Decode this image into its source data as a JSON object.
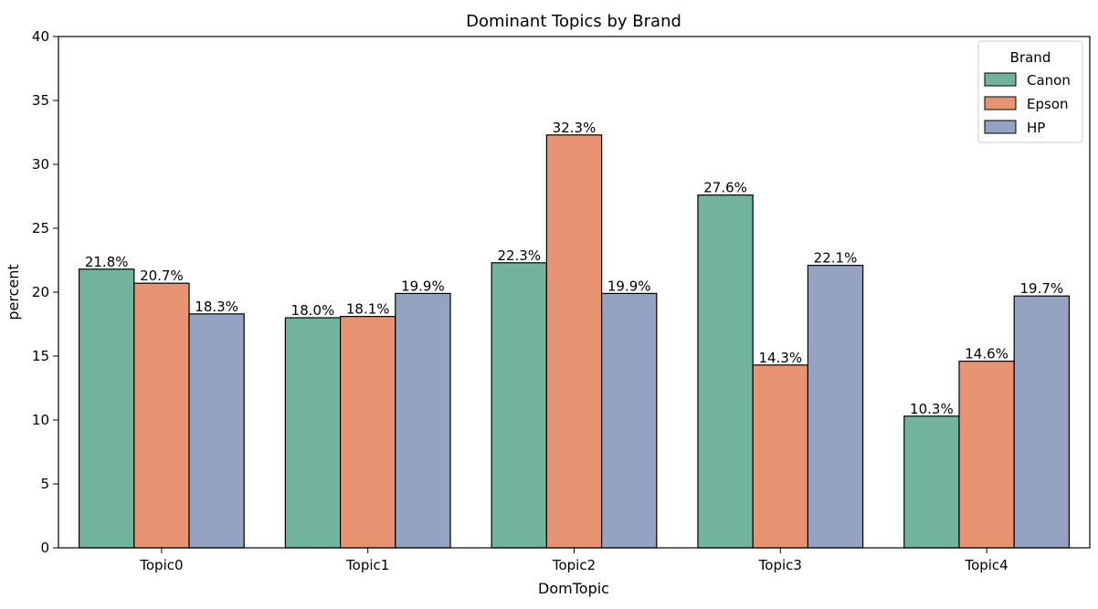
{
  "chart_data": {
    "type": "bar",
    "title": "Dominant Topics by Brand",
    "xlabel": "DomTopic",
    "ylabel": "percent",
    "categories": [
      "Topic0",
      "Topic1",
      "Topic2",
      "Topic3",
      "Topic4"
    ],
    "ylim": [
      0,
      40
    ],
    "yticks": [
      0,
      5,
      10,
      15,
      20,
      25,
      30,
      35,
      40
    ],
    "grid": false,
    "legend": {
      "title": "Brand",
      "placement": "top-right"
    },
    "series": [
      {
        "name": "Canon",
        "color": "#72b39e",
        "values": [
          21.8,
          18.0,
          22.3,
          27.6,
          10.3
        ],
        "labels": [
          "21.8%",
          "18.0%",
          "22.3%",
          "27.6%",
          "10.3%"
        ]
      },
      {
        "name": "Epson",
        "color": "#e89473",
        "values": [
          20.7,
          18.1,
          32.3,
          14.3,
          14.6
        ],
        "labels": [
          "20.7%",
          "18.1%",
          "32.3%",
          "14.3%",
          "14.6%"
        ]
      },
      {
        "name": "HP",
        "color": "#94a3c2",
        "values": [
          18.3,
          19.9,
          19.9,
          22.1,
          19.7
        ],
        "labels": [
          "18.3%",
          "19.9%",
          "19.9%",
          "22.1%",
          "19.7%"
        ]
      }
    ]
  }
}
